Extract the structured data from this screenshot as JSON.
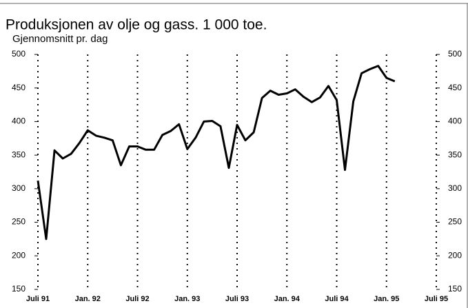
{
  "chart_data": {
    "type": "line",
    "title": "Produksjonen av olje og gass. 1 000 toe.",
    "subtitle": "Gjennomsnitt pr. dag",
    "categories": [
      "Juli 91",
      null,
      null,
      null,
      null,
      null,
      "Jan. 92",
      null,
      null,
      null,
      null,
      null,
      "Juli 92",
      null,
      null,
      null,
      null,
      null,
      "Jan. 93",
      null,
      null,
      null,
      null,
      null,
      "Juli 93",
      null,
      null,
      null,
      null,
      null,
      "Jan. 94",
      null,
      null,
      null,
      null,
      null,
      "Juli 94",
      null,
      null,
      null,
      null,
      null,
      "Jan. 95",
      null,
      null,
      null,
      null,
      null,
      "Juli 95"
    ],
    "series": [
      {
        "name": "Produksjon",
        "color": "#000000",
        "values": [
          312,
          225,
          357,
          345,
          352,
          368,
          387,
          379,
          376,
          372,
          335,
          363,
          363,
          358,
          358,
          380,
          386,
          396,
          359,
          376,
          400,
          401,
          393,
          331,
          395,
          372,
          384,
          435,
          446,
          440,
          442,
          448,
          437,
          429,
          436,
          453,
          432,
          328,
          430,
          472,
          478,
          483,
          465,
          460,
          null,
          null,
          null,
          null,
          null
        ]
      }
    ],
    "ylim": [
      150,
      500
    ],
    "yticks": [
      150,
      200,
      250,
      300,
      350,
      400,
      450,
      500
    ],
    "grid": true
  }
}
